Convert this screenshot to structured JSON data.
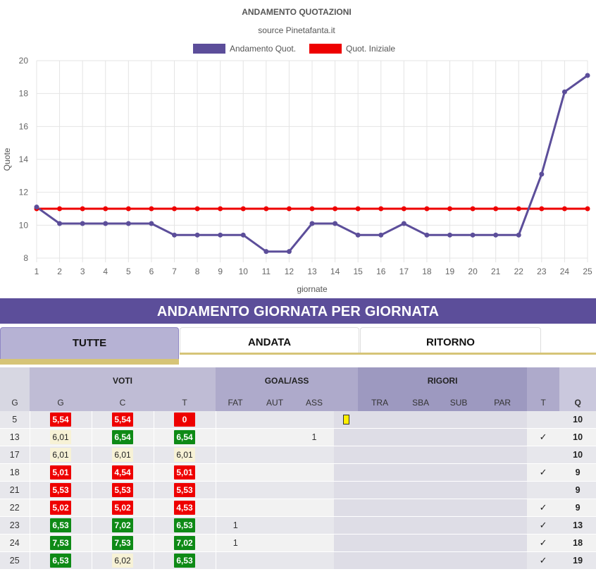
{
  "chart_data": {
    "type": "line",
    "title": "ANDAMENTO QUOTAZIONI",
    "subtitle": "source Pinetafanta.it",
    "xlabel": "giornate",
    "ylabel": "Quote",
    "x": [
      1,
      2,
      3,
      4,
      5,
      6,
      7,
      8,
      9,
      10,
      11,
      12,
      13,
      14,
      15,
      16,
      17,
      18,
      19,
      20,
      21,
      22,
      23,
      24,
      25
    ],
    "ylim": [
      8,
      20
    ],
    "yticks": [
      8,
      10,
      12,
      14,
      16,
      18,
      20
    ],
    "grid": true,
    "legend": "top",
    "series": [
      {
        "name": "Andamento Quot.",
        "color": "#5c4e9a",
        "values": [
          11.1,
          10.1,
          10.1,
          10.1,
          10.1,
          10.1,
          9.4,
          9.4,
          9.4,
          9.4,
          8.4,
          8.4,
          10.1,
          10.1,
          9.4,
          9.4,
          10.1,
          9.4,
          9.4,
          9.4,
          9.4,
          9.4,
          13.1,
          18.1,
          19.1
        ]
      },
      {
        "name": "Quot. Iniziale",
        "color": "#ee0000",
        "values": [
          11,
          11,
          11,
          11,
          11,
          11,
          11,
          11,
          11,
          11,
          11,
          11,
          11,
          11,
          11,
          11,
          11,
          11,
          11,
          11,
          11,
          11,
          11,
          11,
          11
        ]
      }
    ]
  },
  "section_title": "ANDAMENTO GIORNATA PER GIORNATA",
  "tabs": [
    "TUTTE",
    "ANDATA",
    "RITORNO"
  ],
  "table": {
    "groups": {
      "voti": "VOTI",
      "goal": "GOAL/ASS",
      "rigori": "RIGORI"
    },
    "columns": {
      "g": "G",
      "vg": "G",
      "vc": "C",
      "vt": "T",
      "fat": "FAT",
      "aut": "AUT",
      "ass": "ASS",
      "tra": "TRA",
      "sba": "SBA",
      "sub": "SUB",
      "par": "PAR",
      "t": "T",
      "q": "Q"
    },
    "rows": [
      {
        "g": "5",
        "vg": "5,54",
        "vgc": "red",
        "vc": "5,54",
        "vcc": "red",
        "vt": "0",
        "vtc": "red",
        "fat": "",
        "aut": "",
        "ass": "",
        "card": true,
        "t": "",
        "q": "10"
      },
      {
        "g": "13",
        "vg": "6,01",
        "vgc": "cream",
        "vc": "6,54",
        "vcc": "green",
        "vt": "6,54",
        "vtc": "green",
        "fat": "",
        "aut": "",
        "ass": "1",
        "card": false,
        "t": "✓",
        "q": "10"
      },
      {
        "g": "17",
        "vg": "6,01",
        "vgc": "cream",
        "vc": "6,01",
        "vcc": "cream",
        "vt": "6,01",
        "vtc": "cream",
        "fat": "",
        "aut": "",
        "ass": "",
        "card": false,
        "t": "",
        "q": "10"
      },
      {
        "g": "18",
        "vg": "5,01",
        "vgc": "red",
        "vc": "4,54",
        "vcc": "red",
        "vt": "5,01",
        "vtc": "red",
        "fat": "",
        "aut": "",
        "ass": "",
        "card": false,
        "t": "✓",
        "q": "9"
      },
      {
        "g": "21",
        "vg": "5,53",
        "vgc": "red",
        "vc": "5,53",
        "vcc": "red",
        "vt": "5,53",
        "vtc": "red",
        "fat": "",
        "aut": "",
        "ass": "",
        "card": false,
        "t": "",
        "q": "9"
      },
      {
        "g": "22",
        "vg": "5,02",
        "vgc": "red",
        "vc": "5,02",
        "vcc": "red",
        "vt": "4,53",
        "vtc": "red",
        "fat": "",
        "aut": "",
        "ass": "",
        "card": false,
        "t": "✓",
        "q": "9"
      },
      {
        "g": "23",
        "vg": "6,53",
        "vgc": "green",
        "vc": "7,02",
        "vcc": "green",
        "vt": "6,53",
        "vtc": "green",
        "fat": "1",
        "aut": "",
        "ass": "",
        "card": false,
        "t": "✓",
        "q": "13"
      },
      {
        "g": "24",
        "vg": "7,53",
        "vgc": "green",
        "vc": "7,53",
        "vcc": "green",
        "vt": "7,02",
        "vtc": "green",
        "fat": "1",
        "aut": "",
        "ass": "",
        "card": false,
        "t": "✓",
        "q": "18"
      },
      {
        "g": "25",
        "vg": "6,53",
        "vgc": "green",
        "vc": "6,02",
        "vcc": "cream",
        "vt": "6,53",
        "vtc": "green",
        "fat": "",
        "aut": "",
        "ass": "",
        "card": false,
        "t": "✓",
        "q": "19"
      }
    ]
  }
}
